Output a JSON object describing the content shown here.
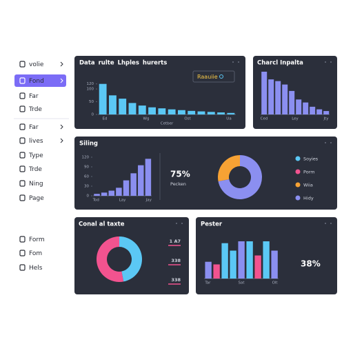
{
  "sidebar": [
    {
      "label": "volie",
      "chevron": true
    },
    {
      "label": "Fond",
      "chevron": true,
      "active": true
    },
    {
      "label": "Far"
    },
    {
      "label": "Trde"
    },
    {
      "label": "Far",
      "chevron": true
    },
    {
      "label": "lives",
      "chevron": true
    },
    {
      "label": "Type"
    },
    {
      "label": "Trde"
    },
    {
      "label": "Ning"
    },
    {
      "label": "Page"
    },
    {
      "label": "Form"
    },
    {
      "label": "Fom"
    },
    {
      "label": "Hels"
    }
  ],
  "panel1": {
    "title": [
      "Data",
      "rulte",
      "Lhples",
      "hurerts"
    ],
    "dropdown": "Raauiie",
    "chart": {
      "type": "bar",
      "values": [
        120,
        75,
        62,
        45,
        35,
        28,
        24,
        20,
        17,
        14,
        12,
        10,
        8,
        6
      ],
      "color": "#5bc8f5",
      "ylim": [
        0,
        130
      ],
      "yticks": [
        0,
        50,
        100,
        120
      ],
      "x_labels": [
        "Ed",
        "Wg",
        "Ost",
        "Ua"
      ],
      "x_title": "Cetber"
    }
  },
  "panel2": {
    "title": "Charcl Inpalta",
    "chart": {
      "type": "bar",
      "values": [
        100,
        82,
        78,
        70,
        55,
        35,
        28,
        18,
        12,
        8
      ],
      "color": "#8b8ff0",
      "x_labels": [
        "Ced",
        "Ley",
        "Jty"
      ]
    }
  },
  "panel3": {
    "title": "Siling",
    "chart": {
      "type": "bar",
      "values": [
        6,
        10,
        16,
        25,
        48,
        70,
        95,
        115
      ],
      "color": "#8b8ff0",
      "ylim": [
        0,
        120
      ],
      "yticks": [
        0,
        30,
        60,
        90,
        120
      ],
      "x_labels": [
        "Tod",
        "Lay",
        "Jay"
      ]
    },
    "stat": {
      "value": "75%",
      "label": "Pecken"
    },
    "donut": {
      "type": "pie",
      "values": [
        72,
        28
      ],
      "colors": [
        "#8b8ff0",
        "#f7a234"
      ]
    },
    "legend": [
      {
        "name": "Soyies",
        "color": "#5bc8f5"
      },
      {
        "name": "Porm",
        "color": "#f2538f"
      },
      {
        "name": "Wiia",
        "color": "#f7a234"
      },
      {
        "name": "Hidy",
        "color": "#8b8ff0"
      }
    ]
  },
  "panel4": {
    "title": "Conal al taxte",
    "donut": {
      "type": "pie",
      "values": [
        47,
        53
      ],
      "colors": [
        "#5bc8f5",
        "#f2538f"
      ]
    },
    "labels": [
      "1 A7",
      "338",
      "338"
    ]
  },
  "panel5": {
    "title": "Pester",
    "chart": {
      "type": "bar",
      "values": [
        45,
        38,
        95,
        75,
        100,
        100,
        62,
        100,
        75
      ],
      "colors": [
        "#8b8ff0",
        "#f2538f",
        "#5bc8f5",
        "#5bc8f5",
        "#8b8ff0",
        "#5bc8f5",
        "#f2538f",
        "#5bc8f5",
        "#8b8ff0"
      ],
      "x_labels": [
        "Tar",
        "Sat",
        "Olt"
      ]
    },
    "stat": "38%"
  }
}
